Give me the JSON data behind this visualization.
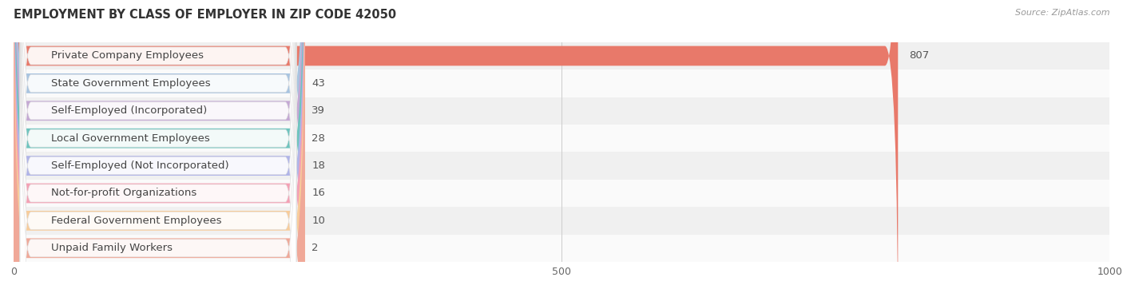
{
  "title": "EMPLOYMENT BY CLASS OF EMPLOYER IN ZIP CODE 42050",
  "source": "Source: ZipAtlas.com",
  "categories": [
    "Private Company Employees",
    "State Government Employees",
    "Self-Employed (Incorporated)",
    "Local Government Employees",
    "Self-Employed (Not Incorporated)",
    "Not-for-profit Organizations",
    "Federal Government Employees",
    "Unpaid Family Workers"
  ],
  "values": [
    807,
    43,
    39,
    28,
    18,
    16,
    10,
    2
  ],
  "bar_colors": [
    "#e8796a",
    "#a8c4e0",
    "#c4a8d4",
    "#6ec4be",
    "#b0b4e8",
    "#f4a0b4",
    "#f8cc9a",
    "#f0a898"
  ],
  "row_bg_odd": "#f0f0f0",
  "row_bg_even": "#fafafa",
  "xlim": [
    0,
    1000
  ],
  "xticks": [
    0,
    500,
    1000
  ],
  "title_fontsize": 10.5,
  "label_fontsize": 9.5,
  "value_fontsize": 9.5,
  "bar_height": 0.72,
  "background_color": "#ffffff"
}
